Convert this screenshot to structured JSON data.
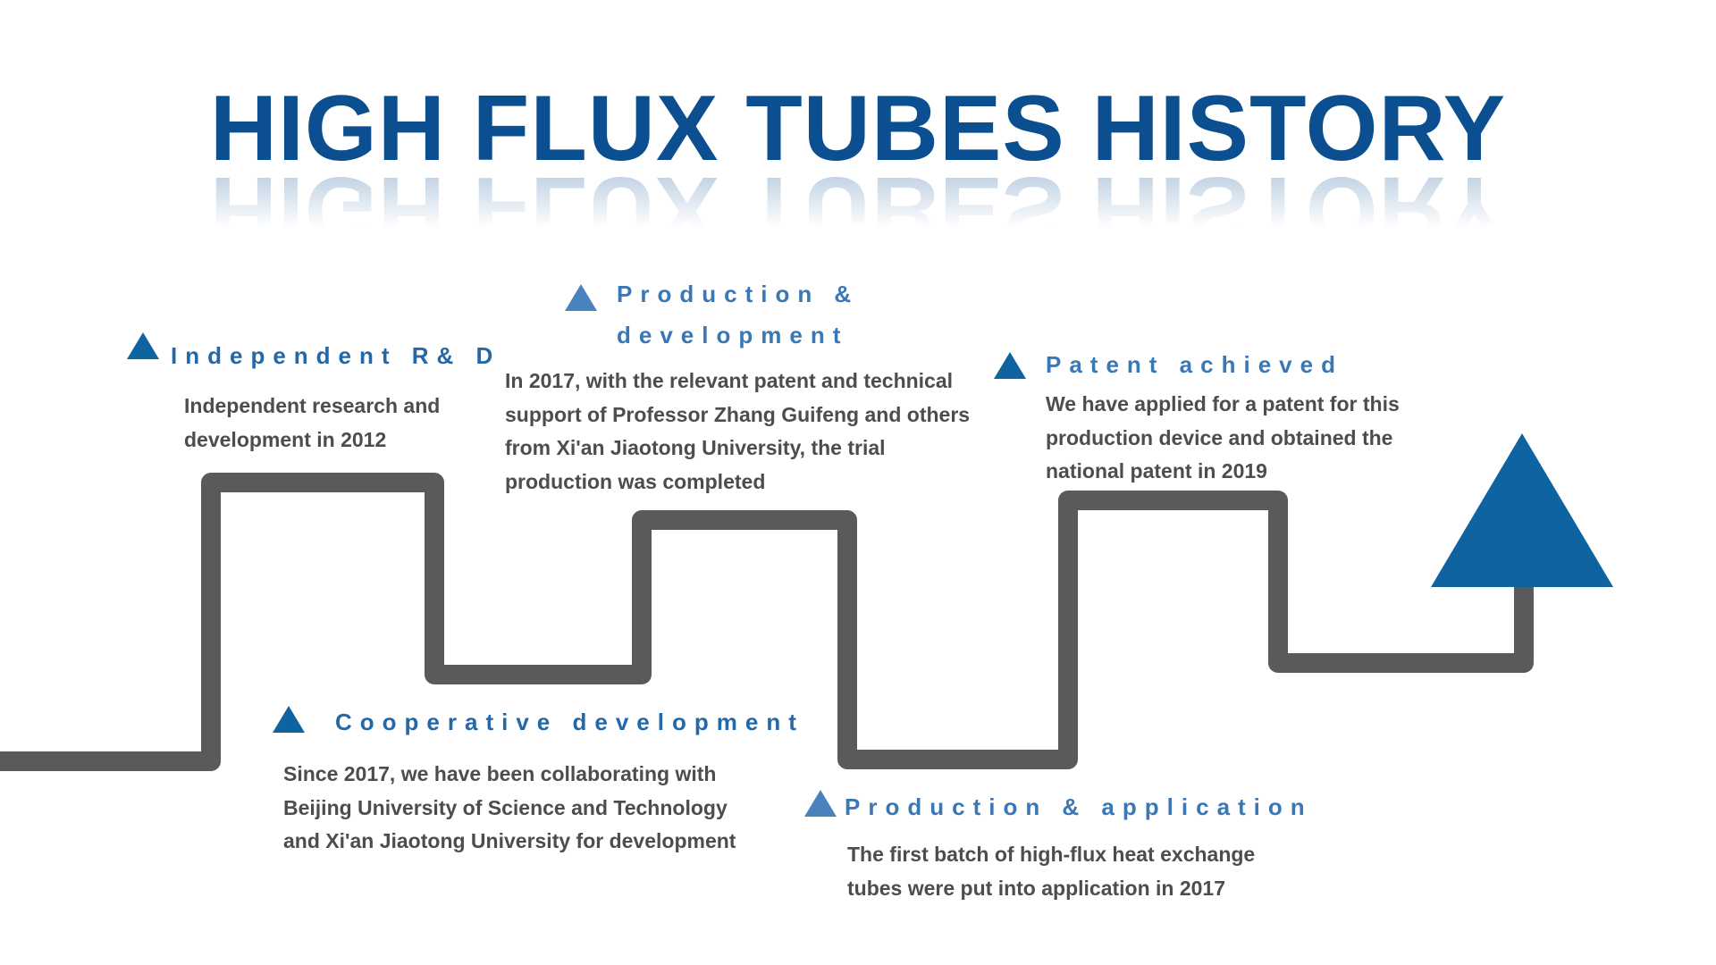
{
  "title": "HIGH FLUX TUBES HISTORY",
  "colors": {
    "title": "#0b4f91",
    "heading": "#2568a8",
    "heading_light": "#3a78b5",
    "marker": "#0e63a0",
    "marker_light": "#4a82bd",
    "body_text": "#4d4d4d",
    "path": "#5a5a5a",
    "arrow": "#0e63a0"
  },
  "milestones": [
    {
      "heading": "Independent R& D",
      "body_lines": [
        "Independent research and",
        "development in 2012"
      ]
    },
    {
      "heading_lines": [
        "Production &",
        "development"
      ],
      "body_lines": [
        "In 2017, with the relevant patent and technical",
        "support of Professor Zhang Guifeng and others",
        "from Xi'an Jiaotong University, the trial",
        "production was completed"
      ]
    },
    {
      "heading": "Patent achieved",
      "body_lines": [
        "We have applied for a patent for this",
        "production device and obtained the",
        "national patent in 2019"
      ]
    },
    {
      "heading": "Cooperative development",
      "body_lines": [
        "Since 2017, we have been collaborating with",
        "Beijing University of Science and Technology",
        "and Xi'an Jiaotong University for development"
      ]
    },
    {
      "heading": "Production & application",
      "body_lines": [
        "The first batch of high-flux heat exchange",
        "tubes were put into application in 2017"
      ]
    }
  ],
  "icons": {
    "marker": "triangle-marker-icon",
    "arrow": "arrow-up-triangle-icon"
  }
}
